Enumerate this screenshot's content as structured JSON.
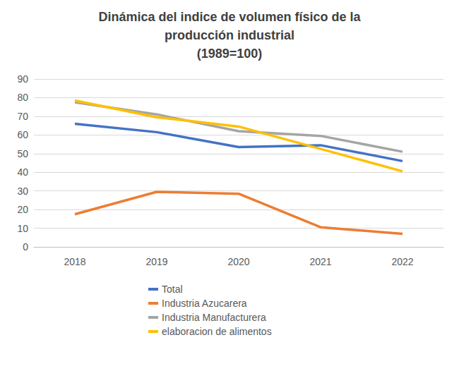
{
  "chart_data": {
    "type": "line",
    "title": "Dinámica del indice de volumen físico de la\nproducción industrial\n(1989=100)",
    "categories": [
      "2018",
      "2019",
      "2020",
      "2021",
      "2022"
    ],
    "series": [
      {
        "name": "Total",
        "color": "#4472c4",
        "values": [
          66,
          61.5,
          53.5,
          54.5,
          46
        ]
      },
      {
        "name": "Industria Azucarera",
        "color": "#ed7d31",
        "values": [
          17.5,
          29.5,
          28.5,
          10.5,
          7
        ]
      },
      {
        "name": "Industria Manufacturera",
        "color": "#a5a5a5",
        "values": [
          77.5,
          71,
          62,
          59.5,
          51
        ]
      },
      {
        "name": "elaboracion de alimentos",
        "color": "#ffc000",
        "values": [
          78.5,
          69.5,
          64.5,
          52.5,
          40.5
        ]
      }
    ],
    "ylim": [
      0,
      90
    ],
    "yticks": [
      0,
      10,
      20,
      30,
      40,
      50,
      60,
      70,
      80,
      90
    ],
    "grid": true,
    "legend": "bottom"
  }
}
